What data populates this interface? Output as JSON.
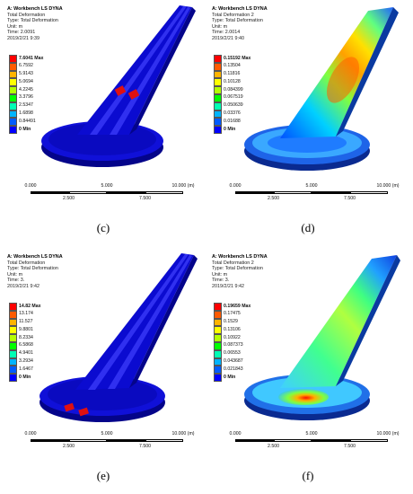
{
  "panels": [
    {
      "caption": "(c)",
      "app": "A: Workbench LS DYNA",
      "line2": "Total Deformation",
      "line3": "Type: Total Deformation",
      "line4": "Unit: m",
      "line5": "Time: 2.0091",
      "line6": "2019/2/21 9:39",
      "legend": [
        "7.6041 Max",
        "6.7592",
        "5.9143",
        "5.0694",
        "4.2245",
        "3.3796",
        "2.5347",
        "1.6898",
        "0.84491",
        "0 Min"
      ],
      "scale_top": [
        "0.000",
        "5.000",
        "10.000 (m)"
      ],
      "scale_bottom": [
        "2.500",
        "7.500"
      ]
    },
    {
      "caption": "(d)",
      "app": "A: Workbench LS DYNA",
      "line2": "Total Deformation 2",
      "line3": "Type: Total Deformation",
      "line4": "Unit: m",
      "line5": "Time: 2.0014",
      "line6": "2019/2/21 9:40",
      "legend": [
        "0.15192 Max",
        "0.13504",
        "0.11816",
        "0.10128",
        "0.084399",
        "0.067519",
        "0.050639",
        "0.03376",
        "0.01688",
        "0 Min"
      ],
      "scale_top": [
        "0.000",
        "5.000",
        "10.000 (m)"
      ],
      "scale_bottom": [
        "2.500",
        "7.500"
      ]
    },
    {
      "caption": "(e)",
      "app": "A: Workbench LS DYNA",
      "line2": "Total Deformation",
      "line3": "Type: Total Deformation",
      "line4": "Unit: m",
      "line5": "Time: 3.",
      "line6": "2019/2/21 9:42",
      "legend": [
        "14.82 Max",
        "13.174",
        "11.527",
        "9.8801",
        "8.2334",
        "6.5868",
        "4.9401",
        "3.2934",
        "1.6467",
        "0 Min"
      ],
      "scale_top": [
        "0.000",
        "5.000",
        "10.000 (m)"
      ],
      "scale_bottom": [
        "2.500",
        "7.500"
      ]
    },
    {
      "caption": "(f)",
      "app": "A: Workbench LS DYNA",
      "line2": "Total Deformation 2",
      "line3": "Type: Total Deformation",
      "line4": "Unit: m",
      "line5": "Time: 3.",
      "line6": "2019/2/21 9:42",
      "legend": [
        "0.19659 Max",
        "0.17475",
        "0.1529",
        "0.13106",
        "0.10922",
        "0.087373",
        "0.06553",
        "0.043687",
        "0.021843",
        "0 Min"
      ],
      "scale_top": [
        "0.000",
        "5.000",
        "10.000 (m)"
      ],
      "scale_bottom": [
        "2.500",
        "7.500"
      ]
    }
  ],
  "legend_colors": [
    "#ff0000",
    "#ff5b00",
    "#ffb400",
    "#ffff00",
    "#b4ff00",
    "#00ff00",
    "#00ffb4",
    "#00b4ff",
    "#005bff",
    "#0000ff"
  ],
  "model_colors": {
    "base": "#0b0bd8",
    "dark": "#04048a",
    "accent": "#ff1a1a"
  }
}
